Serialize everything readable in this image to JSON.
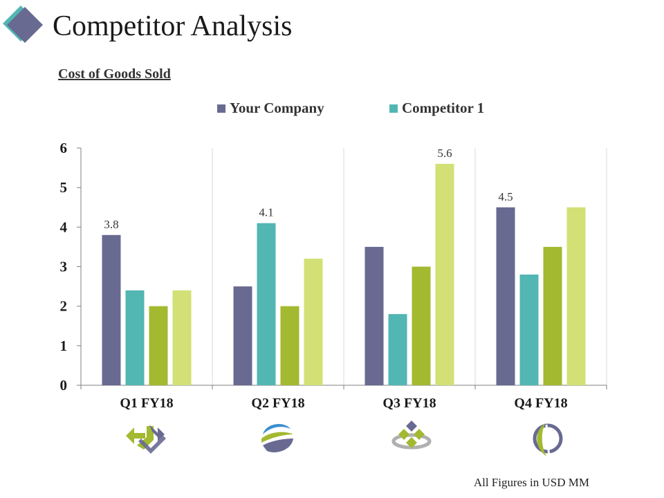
{
  "header": {
    "title": "Competitor Analysis",
    "subtitle": "Cost of Goods Sold"
  },
  "footnote": "All Figures in USD MM",
  "colors": {
    "your_company": "#686a91",
    "competitor_1": "#52b6b3",
    "series3": "#a2b930",
    "series4": "#d2e076",
    "grid": "#d9d9d9",
    "axis": "#7f7f7f"
  },
  "legend": [
    {
      "label": "Your Company",
      "color": "#686a91"
    },
    {
      "label": "Competitor 1",
      "color": "#52b6b3"
    }
  ],
  "category_icons": [
    "arrows-loop-icon",
    "swoosh-globe-icon",
    "diamond-cluster-icon",
    "leaf-circle-icon"
  ],
  "chart_data": {
    "type": "bar",
    "title": "Cost of Goods Sold",
    "categories": [
      "Q1 FY18",
      "Q2 FY18",
      "Q3 FY18",
      "Q4 FY18"
    ],
    "series": [
      {
        "name": "Your Company",
        "values": [
          3.8,
          2.5,
          3.5,
          4.5
        ],
        "color": "#686a91"
      },
      {
        "name": "Competitor 1",
        "values": [
          2.4,
          4.1,
          1.8,
          2.8
        ],
        "color": "#52b6b3"
      },
      {
        "name": "",
        "values": [
          2.0,
          2.0,
          3.0,
          3.5
        ],
        "color": "#a2b930"
      },
      {
        "name": "",
        "values": [
          2.4,
          3.2,
          5.6,
          4.5
        ],
        "color": "#d2e076"
      }
    ],
    "data_labels": [
      {
        "category": "Q1 FY18",
        "series": 0,
        "text": "3.8"
      },
      {
        "category": "Q2 FY18",
        "series": 1,
        "text": "4.1"
      },
      {
        "category": "Q3 FY18",
        "series": 3,
        "text": "5.6"
      },
      {
        "category": "Q4 FY18",
        "series": 0,
        "text": "4.5"
      }
    ],
    "yticks": [
      "0",
      "1",
      "2",
      "3",
      "4",
      "5",
      "6"
    ],
    "ylim": [
      0,
      6
    ],
    "xlabel": "",
    "ylabel": "",
    "grid": "vertical category separators",
    "legend_position": "top"
  }
}
